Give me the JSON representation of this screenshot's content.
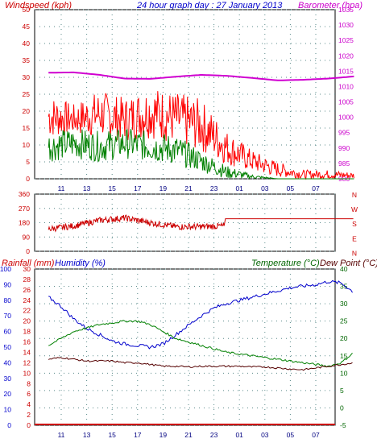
{
  "header": {
    "left_label": "Windspeed (kph)",
    "title": "24 hour graph day : 27 January 2013",
    "right_label": "Barometer (hpa)"
  },
  "bottom_labels": {
    "rainfall": "Rainfall (mm)",
    "humidity": "Humidity (%)",
    "temperature": "Temperature (°C)",
    "dewpoint": "Dew Point (°C)"
  },
  "colors": {
    "wind": "#ff0000",
    "gust": "#008000",
    "barometer": "#d000d0",
    "direction": "#cc0000",
    "humidity": "#0000cc",
    "temperature": "#008000",
    "dewpoint": "#550000",
    "rain": "#cc0000"
  },
  "chart_data": [
    {
      "type": "line",
      "name": "wind-barometer",
      "x_ticks": [
        "11",
        "13",
        "15",
        "17",
        "19",
        "21",
        "23",
        "01",
        "03",
        "05",
        "07"
      ],
      "y_left_ticks": [
        0,
        5,
        10,
        15,
        20,
        25,
        30,
        35,
        40,
        45,
        50
      ],
      "y_left_range": [
        0,
        50
      ],
      "y_right_ticks": [
        980,
        985,
        990,
        995,
        1000,
        1005,
        1010,
        1015,
        1020,
        1025,
        1030,
        1035
      ],
      "y_right_range": [
        980,
        1035
      ],
      "x_hours": [
        10,
        12,
        14,
        16,
        18,
        20,
        22,
        24,
        26,
        28,
        30,
        32,
        34
      ],
      "series": [
        {
          "key": "wind_high",
          "values": [
            22,
            20,
            23,
            21,
            24,
            22,
            20,
            12,
            7,
            4,
            2,
            2,
            1.5
          ]
        },
        {
          "key": "wind_low",
          "values": [
            12,
            13,
            12,
            11,
            12,
            10,
            8,
            4,
            2,
            0.5,
            0,
            0,
            0
          ]
        },
        {
          "key": "gust_high",
          "values": [
            12,
            13,
            12,
            13,
            12,
            11,
            7,
            3,
            1,
            0,
            0,
            0,
            0
          ]
        },
        {
          "key": "gust_low",
          "values": [
            5,
            6,
            5,
            6,
            5,
            4,
            2,
            0,
            0,
            0,
            0,
            0,
            0
          ]
        },
        {
          "key": "barometer",
          "values": [
            1014.5,
            1014.6,
            1013.8,
            1012.6,
            1012.5,
            1013.2,
            1013.8,
            1013.5,
            1012.8,
            1012.0,
            1012.2,
            1012.6,
            1013.3
          ]
        }
      ],
      "grid": true
    },
    {
      "type": "line",
      "name": "wind-direction",
      "y_ticks": [
        0,
        90,
        180,
        270,
        360
      ],
      "y_range": [
        0,
        360
      ],
      "direction_labels": [
        "N",
        "W",
        "S",
        "E",
        "N"
      ],
      "x_hours": [
        10,
        12,
        14,
        16,
        18,
        20,
        22,
        23.8,
        23.9,
        26,
        28,
        30,
        32,
        34
      ],
      "values": [
        140,
        160,
        195,
        210,
        180,
        155,
        155,
        160,
        205,
        205,
        205,
        205,
        205,
        205
      ],
      "grid": true
    },
    {
      "type": "line",
      "name": "temperature-humidity",
      "y_left_humidity_ticks": [
        0,
        10,
        20,
        30,
        40,
        50,
        60,
        70,
        80,
        90,
        100
      ],
      "y_left_rain_ticks": [
        0,
        2,
        4,
        6,
        8,
        10,
        12,
        14,
        16,
        18,
        20,
        22,
        24,
        26,
        28,
        30
      ],
      "y_right_temp_ticks": [
        -5,
        0,
        5,
        10,
        15,
        20,
        25,
        30,
        35,
        40
      ],
      "temp_range": [
        -5,
        40
      ],
      "humidity_range": [
        0,
        100
      ],
      "x_hours": [
        10,
        11,
        12,
        13,
        14,
        15,
        16,
        17,
        18,
        19,
        20,
        21,
        22,
        23,
        24,
        25,
        26,
        27,
        28,
        29,
        30,
        31,
        32,
        33,
        34
      ],
      "series": [
        {
          "key": "humidity",
          "values": [
            82,
            76,
            68,
            62,
            58,
            54,
            52,
            51,
            50,
            52,
            58,
            64,
            70,
            75,
            78,
            80,
            82,
            84,
            86,
            88,
            89,
            90,
            92,
            91,
            85
          ]
        },
        {
          "key": "temperature",
          "values": [
            18,
            20,
            22,
            23,
            24,
            24.5,
            25,
            25,
            24,
            22,
            20,
            19,
            18,
            17,
            16,
            15.5,
            15,
            14.5,
            14,
            13.5,
            13,
            12.5,
            12,
            13,
            16
          ]
        },
        {
          "key": "dewpoint",
          "values": [
            14,
            14.5,
            14,
            13.5,
            13.5,
            13.5,
            13,
            13,
            12.5,
            12,
            12,
            11.8,
            12,
            12,
            12,
            12,
            11.8,
            11.8,
            11.5,
            11.2,
            11,
            11.5,
            12,
            12.5,
            13
          ]
        },
        {
          "key": "rainfall",
          "values": [
            0,
            0,
            0,
            0,
            0,
            0,
            0,
            0,
            0,
            0,
            0,
            0,
            0,
            0,
            0,
            0,
            0,
            0,
            0,
            0,
            0,
            0,
            0,
            0,
            0
          ]
        }
      ],
      "grid": true
    }
  ]
}
